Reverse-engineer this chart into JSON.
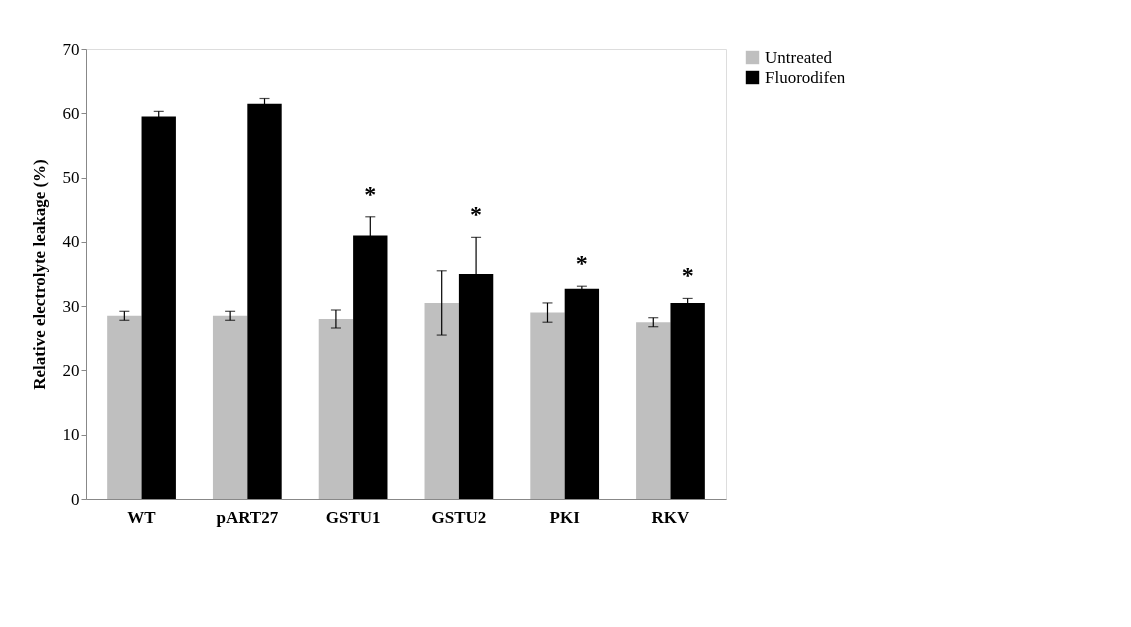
{
  "chart_data": {
    "type": "bar",
    "ylabel": "Relative electrolyte leakage (%)",
    "categories": [
      "WT",
      "pART27",
      "GSTU1",
      "GSTU2",
      "PKI",
      "RKV"
    ],
    "series": [
      {
        "name": "Untreated",
        "color": "#bfbfbf",
        "values": [
          28.5,
          28.5,
          28,
          30.5,
          29,
          27.5
        ],
        "errors": [
          0.7,
          0.7,
          1.4,
          5,
          1.5,
          0.7
        ]
      },
      {
        "name": "Fluorodifen",
        "color": "#000000",
        "values": [
          59.5,
          61.5,
          41,
          35,
          32.7,
          30.5
        ],
        "errors": [
          0.8,
          0.8,
          2.9,
          5.7,
          0.4,
          0.7
        ]
      }
    ],
    "annotations": [
      {
        "text": "*",
        "x": "GSTU1",
        "y": 41
      },
      {
        "text": "*",
        "x": "GSTU2",
        "y": 35
      },
      {
        "text": "*",
        "x": "PKI",
        "y": 32.7
      },
      {
        "text": "*",
        "x": "RKV",
        "y": 30.5
      }
    ],
    "ylim": [
      0,
      70
    ],
    "yticks": [
      0,
      10,
      20,
      30,
      40,
      50,
      60,
      70
    ],
    "grid": false,
    "legend": "right"
  }
}
